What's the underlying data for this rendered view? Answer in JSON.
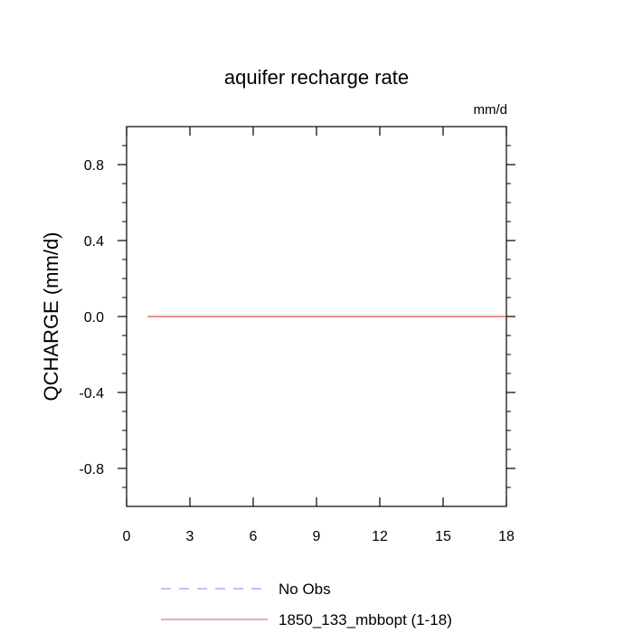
{
  "chart_data": {
    "type": "line",
    "title": "aquifer recharge rate",
    "units": "mm/d",
    "xlabel": "",
    "ylabel": "QCHARGE  (mm/d)",
    "xlim": [
      0,
      18
    ],
    "ylim": [
      -1,
      1
    ],
    "x_ticks": [
      0,
      3,
      6,
      9,
      12,
      15,
      18
    ],
    "x_tick_labels": [
      "0",
      "3",
      "6",
      "9",
      "12",
      "15",
      "18"
    ],
    "y_ticks": [
      0.8,
      0.4,
      0.0,
      -0.4,
      -0.8
    ],
    "y_tick_labels": [
      "0.8",
      "0.4",
      "0.0",
      "-0.4",
      "-0.8"
    ],
    "grid": false,
    "legend_position": "bottom",
    "series": [
      {
        "name": "No Obs",
        "color": "#8080ff",
        "dash": "dashed",
        "x": [],
        "y": []
      },
      {
        "name": "1850_133_mbbopt (1-18)",
        "color": "#e05050",
        "dash": "solid",
        "x": [
          1,
          2,
          3,
          4,
          5,
          6,
          7,
          8,
          9,
          10,
          11,
          12,
          13,
          14,
          15,
          16,
          17,
          18
        ],
        "y": [
          0,
          0,
          0,
          0,
          0,
          0,
          0,
          0,
          0,
          0,
          0,
          0,
          0,
          0,
          0,
          0,
          0,
          0
        ]
      }
    ]
  }
}
